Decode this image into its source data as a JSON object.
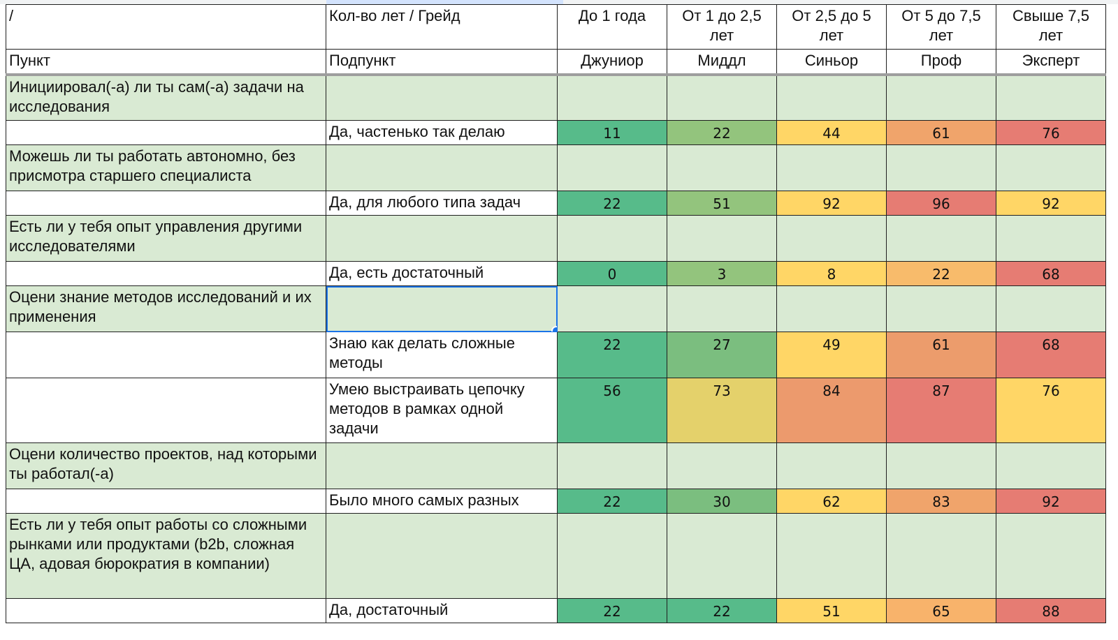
{
  "header": {
    "row1": {
      "punkt": "/",
      "podpunkt": "Кол-во лет / Грейд",
      "years": [
        "До 1 года",
        "От 1 до 2,5 лет",
        "От 2,5 до 5 лет",
        "От 5 до 7,5 лет",
        "Свыше 7,5 лет"
      ]
    },
    "row2": {
      "punkt": "Пункт",
      "podpunkt": "Подпункт",
      "grades": [
        "Джуниор",
        "Миддл",
        "Синьор",
        "Проф",
        "Эксперт"
      ]
    }
  },
  "rows": [
    {
      "type": "q",
      "text": "Инициировал(-а) ли ты сам(-а) задачи на исследования"
    },
    {
      "type": "a",
      "text": "Да, частенько так делаю",
      "values": [
        "11",
        "22",
        "44",
        "61",
        "76"
      ],
      "colors": [
        "#57bb8a",
        "#93c47d",
        "#ffd666",
        "#f0a46b",
        "#e67c73"
      ]
    },
    {
      "type": "q",
      "text": "Можешь ли ты работать автономно, без присмотра старшего специалиста"
    },
    {
      "type": "a",
      "text": "Да, для любого типа задач",
      "values": [
        "22",
        "51",
        "92",
        "96",
        "92"
      ],
      "colors": [
        "#57bb8a",
        "#93c47d",
        "#ffd666",
        "#e67c73",
        "#ffd666"
      ]
    },
    {
      "type": "q",
      "text": "Есть ли у тебя опыт управления другими исследователями"
    },
    {
      "type": "a",
      "text": "Да, есть достаточный",
      "values": [
        "0",
        "3",
        "8",
        "22",
        "68"
      ],
      "colors": [
        "#57bb8a",
        "#93c47d",
        "#ffd666",
        "#f8bb6b",
        "#e67c73"
      ]
    },
    {
      "type": "q",
      "text": "Оцени знание методов исследований и их применения"
    },
    {
      "type": "a",
      "text": "Знаю как делать сложные методы",
      "values": [
        "22",
        "27",
        "49",
        "61",
        "68"
      ],
      "colors": [
        "#57bb8a",
        "#7bbe7f",
        "#ffd666",
        "#ec9c6c",
        "#e67c73"
      ]
    },
    {
      "type": "a",
      "text": "Умею выстраивать цепочку методов в рамках одной задачи",
      "values": [
        "56",
        "73",
        "84",
        "87",
        "76"
      ],
      "colors": [
        "#57bb8a",
        "#e4d16b",
        "#ec9a6d",
        "#e67c73",
        "#ffd666"
      ]
    },
    {
      "type": "q",
      "text": "Оцени количество проектов, над которыми ты работал(-а)"
    },
    {
      "type": "a",
      "text": "Было много самых разных",
      "values": [
        "22",
        "30",
        "62",
        "83",
        "92"
      ],
      "colors": [
        "#57bb8a",
        "#7bbe7f",
        "#ffd666",
        "#f0a46b",
        "#e67c73"
      ]
    },
    {
      "type": "q",
      "text": "Есть ли у тебя опыт работы со сложными рынками или продуктами (b2b, сложная ЦА, адовая бюрократия в компании)"
    },
    {
      "type": "a",
      "text": "Да, достаточный",
      "values": [
        "22",
        "22",
        "51",
        "65",
        "88"
      ],
      "colors": [
        "#57bb8a",
        "#57bb8a",
        "#ffd666",
        "#f8b36b",
        "#e67c73"
      ]
    }
  ]
}
